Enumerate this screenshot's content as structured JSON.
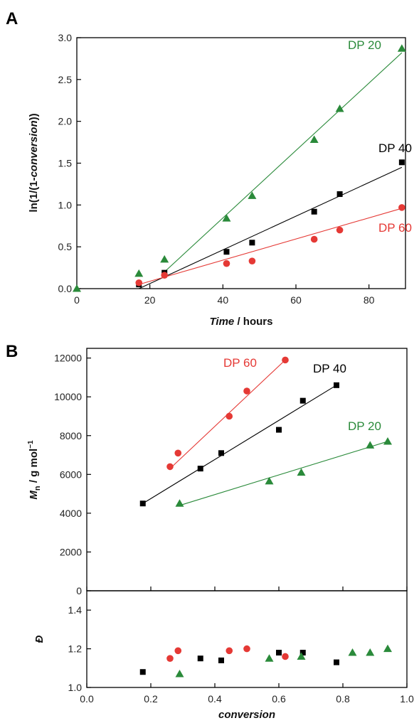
{
  "colors": {
    "DP 20": "#2a8a3a",
    "DP 40": "#000000",
    "DP 60": "#e53935"
  },
  "chart_data": [
    {
      "panel": "A",
      "type": "scatter",
      "xlabel_italic": "Time",
      "xlabel_rest": " / hours",
      "ylabel_prefix": "ln(1/(1-",
      "ylabel_italic": "conversion",
      "ylabel_suffix": "))",
      "xlim": [
        0,
        90
      ],
      "ylim": [
        0,
        3.0
      ],
      "xticks": [
        0,
        20,
        40,
        60,
        80
      ],
      "yticks": [
        0.0,
        0.5,
        1.0,
        1.5,
        2.0,
        2.5,
        3.0
      ],
      "series": [
        {
          "name": "DP 20",
          "marker": "triangle",
          "x": [
            0,
            17,
            24,
            41,
            48,
            65,
            72,
            89
          ],
          "y": [
            0,
            0.18,
            0.35,
            0.84,
            1.11,
            1.78,
            2.15,
            2.87
          ],
          "fit": [
            [
              24,
              0.2
            ],
            [
              89,
              2.82
            ]
          ]
        },
        {
          "name": "DP 40",
          "marker": "square",
          "x": [
            17,
            24,
            41,
            48,
            65,
            72,
            89
          ],
          "y": [
            0.05,
            0.19,
            0.44,
            0.55,
            0.92,
            1.13,
            1.51
          ],
          "fit": [
            [
              17,
              0.0
            ],
            [
              89,
              1.45
            ]
          ]
        },
        {
          "name": "DP 60",
          "marker": "circle",
          "x": [
            17,
            24,
            41,
            48,
            65,
            72,
            89
          ],
          "y": [
            0.07,
            0.16,
            0.3,
            0.33,
            0.59,
            0.7,
            0.97
          ],
          "fit": [
            [
              17,
              0.05
            ],
            [
              89,
              0.96
            ]
          ]
        }
      ]
    },
    {
      "panel": "B",
      "type": "scatter",
      "ylabel_prefix": "M",
      "ylabel_sub": "n",
      "ylabel_rest": " / g mol",
      "ylabel_sup": "−1",
      "xlim": [
        0,
        1.0
      ],
      "ylim": [
        0,
        12500
      ],
      "yticks": [
        0,
        2000,
        4000,
        6000,
        8000,
        10000,
        12000
      ],
      "series": [
        {
          "name": "DP 60",
          "marker": "circle",
          "x": [
            0.26,
            0.285,
            0.445,
            0.5,
            0.62
          ],
          "y": [
            6400,
            7100,
            9000,
            10300,
            11900
          ],
          "fit": [
            [
              0.26,
              6300
            ],
            [
              0.62,
              11900
            ]
          ]
        },
        {
          "name": "DP 40",
          "marker": "square",
          "x": [
            0.175,
            0.355,
            0.42,
            0.6,
            0.675,
            0.78
          ],
          "y": [
            4500,
            6300,
            7100,
            8300,
            9800,
            10600
          ],
          "fit": [
            [
              0.175,
              4500
            ],
            [
              0.78,
              10600
            ]
          ]
        },
        {
          "name": "DP 20",
          "marker": "triangle",
          "x": [
            0.29,
            0.57,
            0.67,
            0.885,
            0.94
          ],
          "y": [
            4500,
            5650,
            6100,
            7500,
            7700
          ],
          "fit": [
            [
              0.29,
              4400
            ],
            [
              0.94,
              7700
            ]
          ]
        }
      ]
    },
    {
      "panel": "B-lower",
      "type": "scatter",
      "xlabel": "conversion",
      "ylabel": "Đ",
      "xlim": [
        0,
        1.0
      ],
      "ylim": [
        1.0,
        1.5
      ],
      "xticks": [
        0.0,
        0.2,
        0.4,
        0.6,
        0.8,
        1.0
      ],
      "yticks": [
        1.0,
        1.2,
        1.4
      ],
      "series": [
        {
          "name": "DP 60",
          "marker": "circle",
          "x": [
            0.26,
            0.285,
            0.445,
            0.5,
            0.62
          ],
          "y": [
            1.15,
            1.19,
            1.19,
            1.2,
            1.16
          ]
        },
        {
          "name": "DP 40",
          "marker": "square",
          "x": [
            0.175,
            0.355,
            0.42,
            0.6,
            0.675,
            0.78
          ],
          "y": [
            1.08,
            1.15,
            1.14,
            1.18,
            1.18,
            1.13
          ]
        },
        {
          "name": "DP 20",
          "marker": "triangle",
          "x": [
            0.29,
            0.57,
            0.67,
            0.83,
            0.885,
            0.94
          ],
          "y": [
            1.07,
            1.15,
            1.16,
            1.18,
            1.18,
            1.2
          ]
        }
      ]
    }
  ]
}
